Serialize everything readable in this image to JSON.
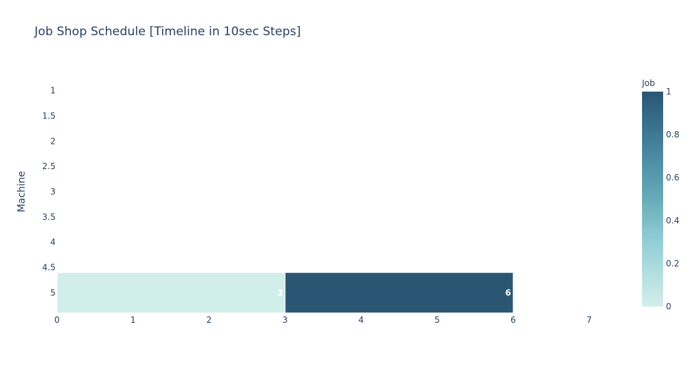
{
  "chart_data": {
    "type": "bar",
    "orientation": "horizontal",
    "title": "Job Shop Schedule [Timeline in 10sec Steps]",
    "xlabel": "",
    "ylabel": "Machine",
    "xlim": [
      0,
      7.5
    ],
    "ylim": [
      0.6,
      5.4
    ],
    "xticks": [
      0,
      1,
      2,
      3,
      4,
      5,
      6,
      7
    ],
    "yticks": [
      "1",
      "1.5",
      "2",
      "2.5",
      "3",
      "3.5",
      "4",
      "4.5",
      "5"
    ],
    "grid": false,
    "bars": [
      {
        "machine": 5,
        "start": 0,
        "finish": 3,
        "job": 0,
        "label": "3",
        "color": "#d2eeea"
      },
      {
        "machine": 5,
        "start": 3,
        "finish": 6,
        "job": 1,
        "label": "6",
        "color": "#2a5674"
      }
    ],
    "colorbar": {
      "title": "Job",
      "range": [
        0,
        1
      ],
      "ticks": [
        "0",
        "0.2",
        "0.4",
        "0.6",
        "0.8",
        "1"
      ],
      "colors": [
        "#d2eeea",
        "#b1dde0",
        "#8cc9d2",
        "#68abb8",
        "#4f90a6",
        "#3b738f",
        "#2a5674"
      ]
    }
  }
}
